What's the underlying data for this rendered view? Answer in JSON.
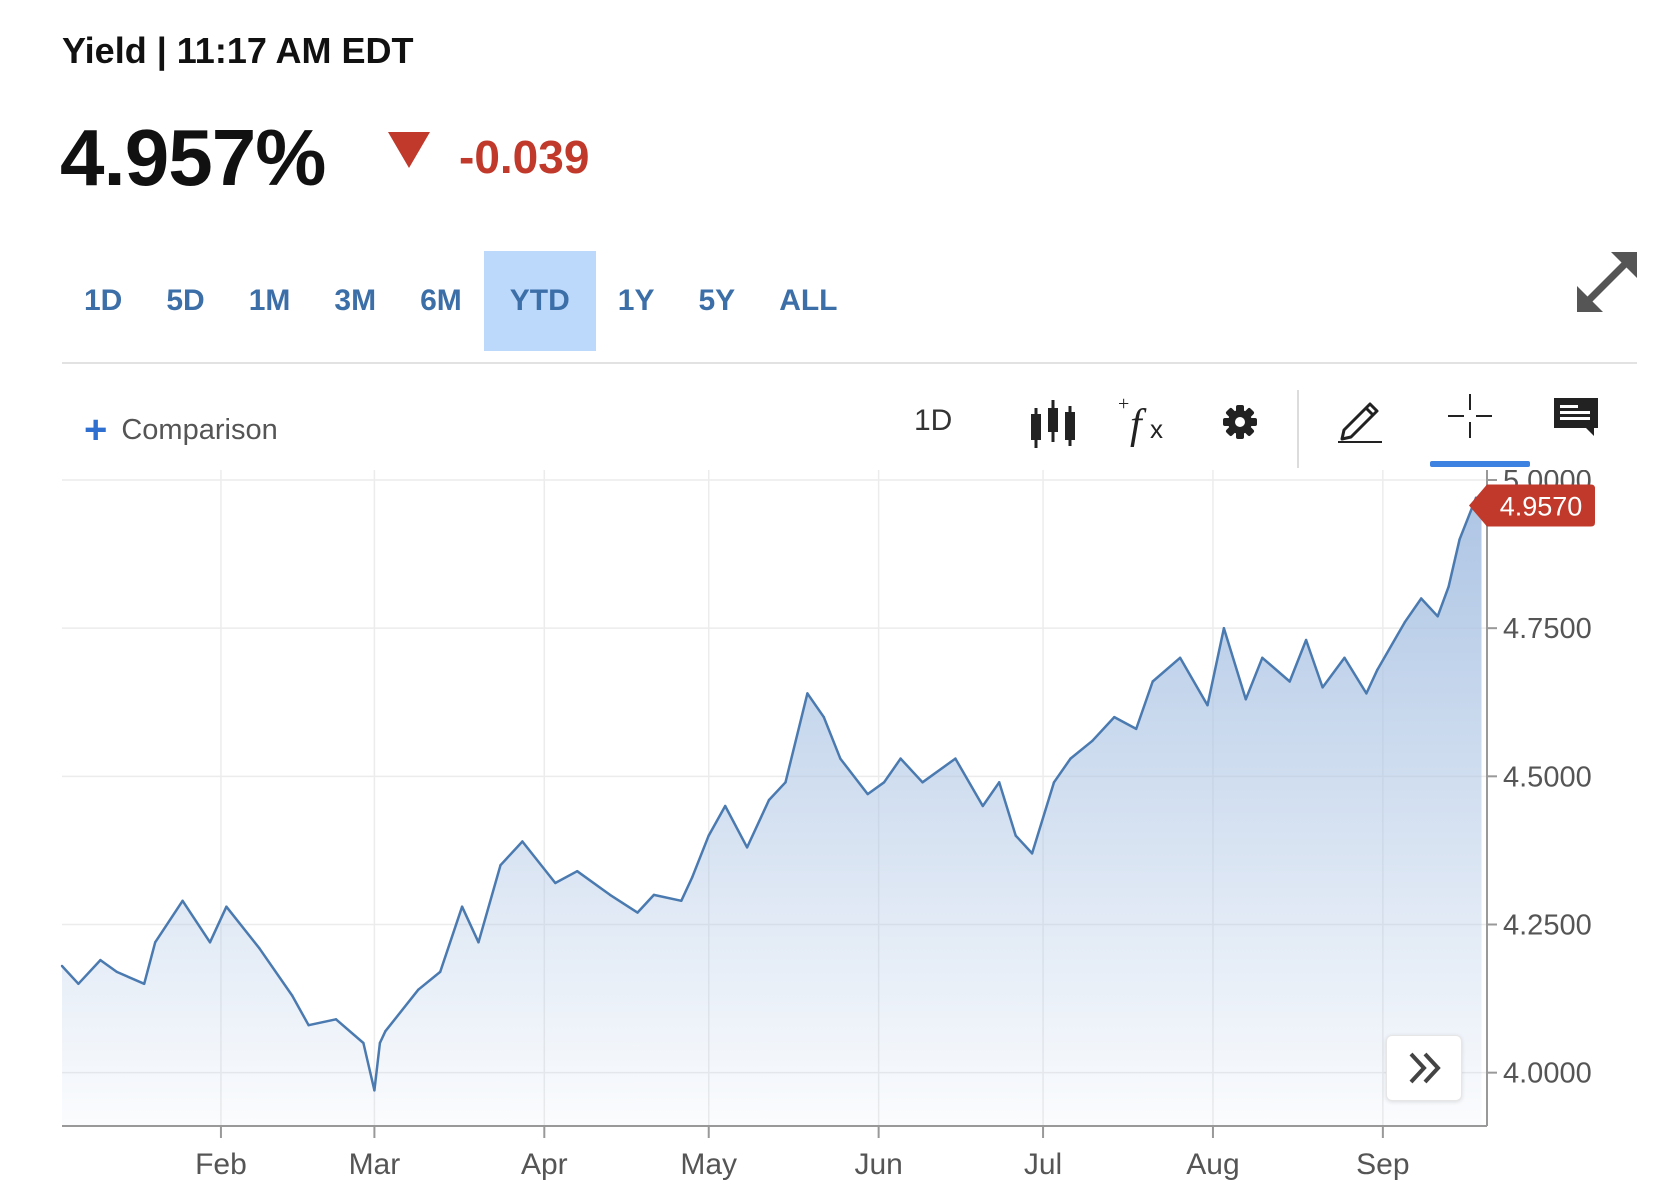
{
  "header": {
    "title": "Yield | 11:17 AM EDT"
  },
  "quote": {
    "price": "4.957%",
    "change": "-0.039",
    "direction": "down",
    "change_color": "#c0392b"
  },
  "range_tabs": [
    "1D",
    "5D",
    "1M",
    "3M",
    "6M",
    "YTD",
    "1Y",
    "5Y",
    "ALL"
  ],
  "active_range": "YTD",
  "toolbar": {
    "comparison_label": "Comparison",
    "interval": "1D",
    "icons": [
      "candlestick-icon",
      "indicators-fx-icon",
      "gear-icon",
      "pencil-icon",
      "crosshair-icon",
      "comment-icon"
    ],
    "active_tool": "crosshair-icon"
  },
  "chart_data": {
    "type": "area",
    "x_months": [
      "Feb",
      "Mar",
      "Apr",
      "May",
      "Jun",
      "Jul",
      "Aug",
      "Sep"
    ],
    "yticks": [
      "4.0000",
      "4.2500",
      "4.5000",
      "4.7500",
      "5.0000"
    ],
    "ylim": [
      3.91,
      5.0
    ],
    "last_value_label": "4.9570",
    "last_value": 4.957,
    "grid": true,
    "line_color": "#4a7ab0",
    "fill_color": "#a9c2e3",
    "series": [
      {
        "x": [
          "2023-01-03",
          "2023-01-06",
          "2023-01-10",
          "2023-01-13",
          "2023-01-18",
          "2023-01-20",
          "2023-01-25",
          "2023-01-30",
          "2023-02-02",
          "2023-02-08",
          "2023-02-14",
          "2023-02-17",
          "2023-02-22",
          "2023-02-27",
          "2023-03-01",
          "2023-03-02",
          "2023-03-03",
          "2023-03-09",
          "2023-03-13",
          "2023-03-17",
          "2023-03-20",
          "2023-03-24",
          "2023-03-28",
          "2023-04-03",
          "2023-04-07",
          "2023-04-13",
          "2023-04-18",
          "2023-04-21",
          "2023-04-26",
          "2023-04-28",
          "2023-05-01",
          "2023-05-04",
          "2023-05-08",
          "2023-05-12",
          "2023-05-15",
          "2023-05-19",
          "2023-05-22",
          "2023-05-25",
          "2023-05-30",
          "2023-06-02",
          "2023-06-05",
          "2023-06-09",
          "2023-06-15",
          "2023-06-20",
          "2023-06-23",
          "2023-06-26",
          "2023-06-29",
          "2023-07-03",
          "2023-07-06",
          "2023-07-10",
          "2023-07-14",
          "2023-07-18",
          "2023-07-21",
          "2023-07-26",
          "2023-07-31",
          "2023-08-03",
          "2023-08-07",
          "2023-08-10",
          "2023-08-15",
          "2023-08-18",
          "2023-08-21",
          "2023-08-25",
          "2023-08-29",
          "2023-08-31",
          "2023-09-05",
          "2023-09-08",
          "2023-09-11",
          "2023-09-13",
          "2023-09-15",
          "2023-09-18",
          "2023-09-19"
        ],
        "y": [
          4.18,
          4.15,
          4.19,
          4.17,
          4.15,
          4.22,
          4.29,
          4.22,
          4.28,
          4.21,
          4.13,
          4.08,
          4.09,
          4.05,
          3.97,
          4.05,
          4.07,
          4.14,
          4.17,
          4.28,
          4.22,
          4.35,
          4.39,
          4.32,
          4.34,
          4.3,
          4.27,
          4.3,
          4.29,
          4.33,
          4.4,
          4.45,
          4.38,
          4.46,
          4.49,
          4.64,
          4.6,
          4.53,
          4.47,
          4.49,
          4.53,
          4.49,
          4.53,
          4.45,
          4.49,
          4.4,
          4.37,
          4.49,
          4.53,
          4.56,
          4.6,
          4.58,
          4.66,
          4.7,
          4.62,
          4.75,
          4.63,
          4.7,
          4.66,
          4.73,
          4.65,
          4.7,
          4.64,
          4.68,
          4.76,
          4.8,
          4.77,
          4.82,
          4.9,
          4.97,
          4.957
        ]
      }
    ]
  }
}
